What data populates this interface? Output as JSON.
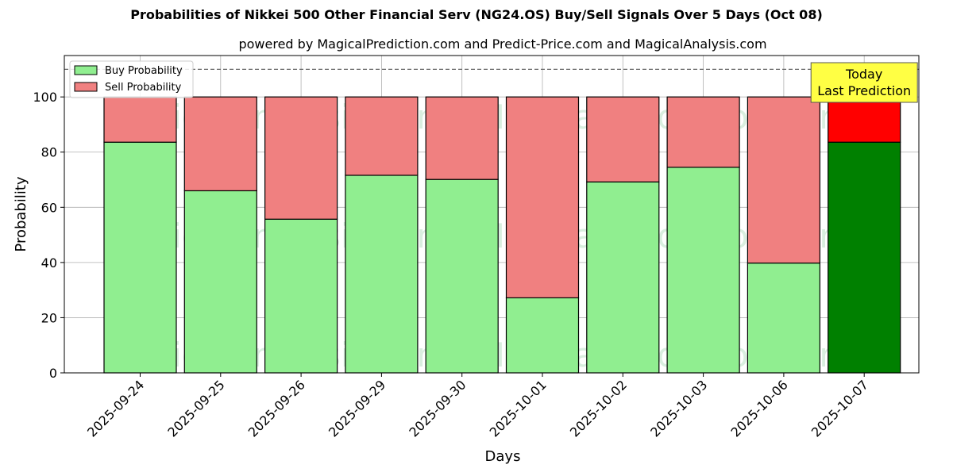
{
  "chart_data": {
    "type": "bar",
    "title": "Probabilities of Nikkei 500 Other Financial Serv (NG24.OS) Buy/Sell Signals Over 5 Days (Oct 08)",
    "subtitle": "powered by MagicalPrediction.com and Predict-Price.com and MagicalAnalysis.com",
    "xlabel": "Days",
    "ylabel": "Probability",
    "ylim": [
      0,
      115
    ],
    "yticks": [
      0,
      20,
      40,
      60,
      80,
      100
    ],
    "grid": true,
    "stacked": true,
    "reference_line": 110,
    "categories": [
      "2025-09-24",
      "2025-09-25",
      "2025-09-26",
      "2025-09-29",
      "2025-09-30",
      "2025-10-01",
      "2025-10-02",
      "2025-10-03",
      "2025-10-06",
      "2025-10-07"
    ],
    "series": [
      {
        "name": "Buy Probability",
        "color": "#90ee90",
        "values": [
          83.6,
          66.0,
          55.7,
          71.6,
          70.1,
          27.2,
          69.2,
          74.5,
          39.8,
          83.6
        ]
      },
      {
        "name": "Sell Probability",
        "color": "#f08080",
        "values": [
          16.4,
          34.0,
          44.3,
          28.4,
          29.9,
          72.8,
          30.8,
          25.5,
          60.2,
          16.4
        ]
      }
    ],
    "highlight": {
      "index": 9,
      "buy_color": "#008000",
      "sell_color": "#ff0000"
    },
    "legend_position": "top-left",
    "annotation": {
      "line1": "Today",
      "line2": "Last Prediction",
      "background": "#ffff44"
    },
    "watermarks": [
      "MagicalAnalysis.com",
      "MagicalPrediction.com"
    ]
  }
}
